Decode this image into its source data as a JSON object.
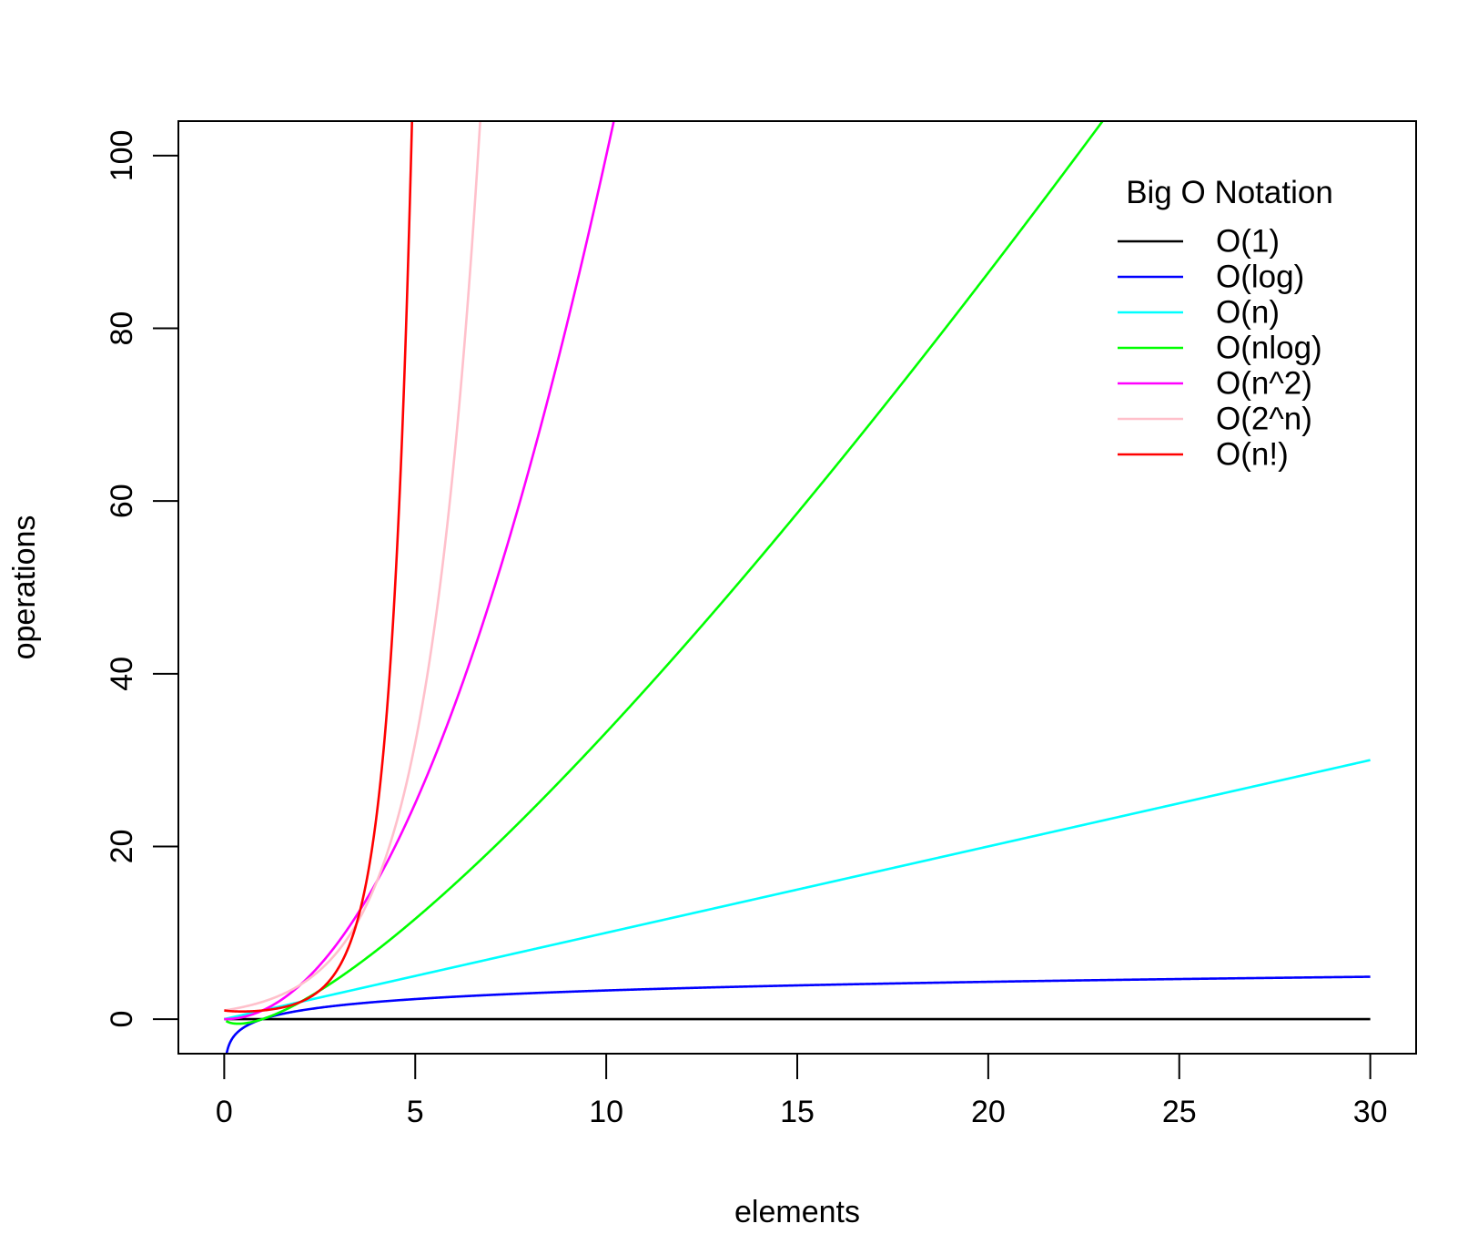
{
  "chart_data": {
    "type": "line",
    "xlabel": "elements",
    "ylabel": "operations",
    "xlim": [
      -1.2,
      31.2
    ],
    "ylim": [
      -4,
      104
    ],
    "x_ticks": [
      0,
      5,
      10,
      15,
      20,
      25,
      30
    ],
    "y_ticks": [
      0,
      20,
      40,
      60,
      80,
      100
    ],
    "grid": false,
    "legend": {
      "title": "Big O Notation",
      "placement": "top-right"
    },
    "series": [
      {
        "name": "O(1)",
        "color": "#000000",
        "function": "constant",
        "x_range": [
          0,
          30
        ]
      },
      {
        "name": "O(log)",
        "color": "#0000FF",
        "function": "log2",
        "x_range": [
          0.05,
          30
        ]
      },
      {
        "name": "O(n)",
        "color": "#00FFFF",
        "function": "linear",
        "x_range": [
          0,
          30
        ]
      },
      {
        "name": "O(nlog)",
        "color": "#00FF00",
        "function": "nlog2",
        "x_range": [
          0.05,
          30
        ]
      },
      {
        "name": "O(n^2)",
        "color": "#FF00FF",
        "function": "square",
        "x_range": [
          0,
          30
        ]
      },
      {
        "name": "O(2^n)",
        "color": "#FFC0CB",
        "function": "exp2",
        "x_range": [
          0,
          30
        ]
      },
      {
        "name": "O(n!)",
        "color": "#FF0000",
        "function": "factorial",
        "x_range": [
          0,
          30
        ]
      }
    ]
  }
}
